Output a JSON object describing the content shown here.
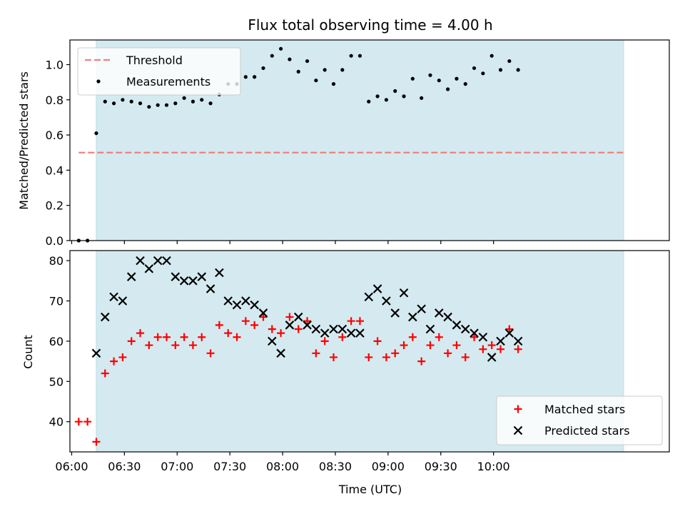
{
  "chart_data": [
    {
      "type": "scatter",
      "title": "Flux total observing time = 4.00 h",
      "xlabel": "",
      "ylabel": "Matched/Predicted stars",
      "ylim": [
        0,
        1.14
      ],
      "yticks": [
        "0.0",
        "0.2",
        "0.4",
        "0.6",
        "0.8",
        "1.0"
      ],
      "xlim": [
        "05:59",
        "11:40"
      ],
      "shaded_region": [
        "06:14",
        "11:14"
      ],
      "legend": {
        "position": "top-left",
        "items": [
          "Threshold",
          "Measurements"
        ]
      },
      "threshold": {
        "name": "Threshold",
        "value": 0.5,
        "x_range": [
          "06:04",
          "11:14"
        ],
        "color": "#f08080",
        "style": "dashed"
      },
      "series": [
        {
          "name": "Measurements",
          "marker": "dot",
          "color": "#000000",
          "x": [
            "06:04",
            "06:09",
            "06:14",
            "06:19",
            "06:24",
            "06:29",
            "06:34",
            "06:39",
            "06:44",
            "06:49",
            "06:54",
            "06:59",
            "07:04",
            "07:09",
            "07:14",
            "07:19",
            "07:24",
            "07:29",
            "07:34",
            "07:39",
            "07:44",
            "07:49",
            "07:54",
            "07:59",
            "08:04",
            "08:09",
            "08:14",
            "08:19",
            "08:24",
            "08:29",
            "08:34",
            "08:39",
            "08:44",
            "08:49",
            "08:54",
            "08:59",
            "09:04",
            "09:09",
            "09:14",
            "09:19",
            "09:24",
            "09:29",
            "09:34",
            "09:39",
            "09:44",
            "09:49",
            "09:54",
            "09:59",
            "10:04",
            "10:09",
            "10:14"
          ],
          "y": [
            0.0,
            0.0,
            0.61,
            0.79,
            0.78,
            0.8,
            0.79,
            0.78,
            0.76,
            0.77,
            0.77,
            0.78,
            0.81,
            0.79,
            0.8,
            0.78,
            0.83,
            0.89,
            0.89,
            0.93,
            0.93,
            0.98,
            1.05,
            1.09,
            1.03,
            0.96,
            1.02,
            0.91,
            0.97,
            0.89,
            0.97,
            1.05,
            1.05,
            0.79,
            0.82,
            0.8,
            0.85,
            0.82,
            0.92,
            0.81,
            0.94,
            0.91,
            0.86,
            0.92,
            0.89,
            0.98,
            0.95,
            1.05,
            0.97,
            1.02,
            0.97
          ]
        }
      ]
    },
    {
      "type": "scatter",
      "title": "",
      "xlabel": "Time (UTC)",
      "ylabel": "Count",
      "ylim": [
        32.5,
        82.5
      ],
      "yticks": [
        "40",
        "50",
        "60",
        "70",
        "80"
      ],
      "xlim": [
        "05:59",
        "11:40"
      ],
      "xticks": [
        "06:00",
        "06:30",
        "07:00",
        "07:30",
        "08:00",
        "08:30",
        "09:00",
        "09:30",
        "10:00"
      ],
      "shaded_region": [
        "06:14",
        "11:14"
      ],
      "legend": {
        "position": "bottom-right",
        "items": [
          "Matched stars",
          "Predicted stars"
        ]
      },
      "series": [
        {
          "name": "Matched stars",
          "marker": "plus",
          "color": "#ff0000",
          "x": [
            "06:04",
            "06:09",
            "06:14",
            "06:19",
            "06:24",
            "06:29",
            "06:34",
            "06:39",
            "06:44",
            "06:49",
            "06:54",
            "06:59",
            "07:04",
            "07:09",
            "07:14",
            "07:19",
            "07:24",
            "07:29",
            "07:34",
            "07:39",
            "07:44",
            "07:49",
            "07:54",
            "07:59",
            "08:04",
            "08:09",
            "08:14",
            "08:19",
            "08:24",
            "08:29",
            "08:34",
            "08:39",
            "08:44",
            "08:49",
            "08:54",
            "08:59",
            "09:04",
            "09:09",
            "09:14",
            "09:19",
            "09:24",
            "09:29",
            "09:34",
            "09:39",
            "09:44",
            "09:49",
            "09:54",
            "09:59",
            "10:04",
            "10:09",
            "10:14"
          ],
          "y": [
            40,
            40,
            35,
            52,
            55,
            56,
            60,
            62,
            59,
            61,
            61,
            59,
            61,
            59,
            61,
            57,
            64,
            62,
            61,
            65,
            64,
            66,
            63,
            62,
            66,
            63,
            65,
            57,
            60,
            56,
            61,
            65,
            65,
            56,
            60,
            56,
            57,
            59,
            61,
            55,
            59,
            61,
            57,
            59,
            56,
            61,
            58,
            59,
            58,
            63,
            58
          ]
        },
        {
          "name": "Predicted stars",
          "marker": "x",
          "color": "#000000",
          "x": [
            "06:14",
            "06:19",
            "06:24",
            "06:29",
            "06:34",
            "06:39",
            "06:44",
            "06:49",
            "06:54",
            "06:59",
            "07:04",
            "07:09",
            "07:14",
            "07:19",
            "07:24",
            "07:29",
            "07:34",
            "07:39",
            "07:44",
            "07:49",
            "07:54",
            "07:59",
            "08:04",
            "08:09",
            "08:14",
            "08:19",
            "08:24",
            "08:29",
            "08:34",
            "08:39",
            "08:44",
            "08:49",
            "08:54",
            "08:59",
            "09:04",
            "09:09",
            "09:14",
            "09:19",
            "09:24",
            "09:29",
            "09:34",
            "09:39",
            "09:44",
            "09:49",
            "09:54",
            "09:59",
            "10:04",
            "10:09",
            "10:14"
          ],
          "y": [
            57,
            66,
            71,
            70,
            76,
            80,
            78,
            80,
            80,
            76,
            75,
            75,
            76,
            73,
            77,
            70,
            69,
            70,
            69,
            67,
            60,
            57,
            64,
            66,
            64,
            63,
            62,
            63,
            63,
            62,
            62,
            71,
            73,
            70,
            67,
            72,
            66,
            68,
            63,
            67,
            66,
            64,
            63,
            62,
            61,
            56,
            60,
            62,
            60
          ]
        }
      ]
    }
  ],
  "colors": {
    "shade": "#d4eaf0",
    "shade_edge": "#b9dde6"
  }
}
